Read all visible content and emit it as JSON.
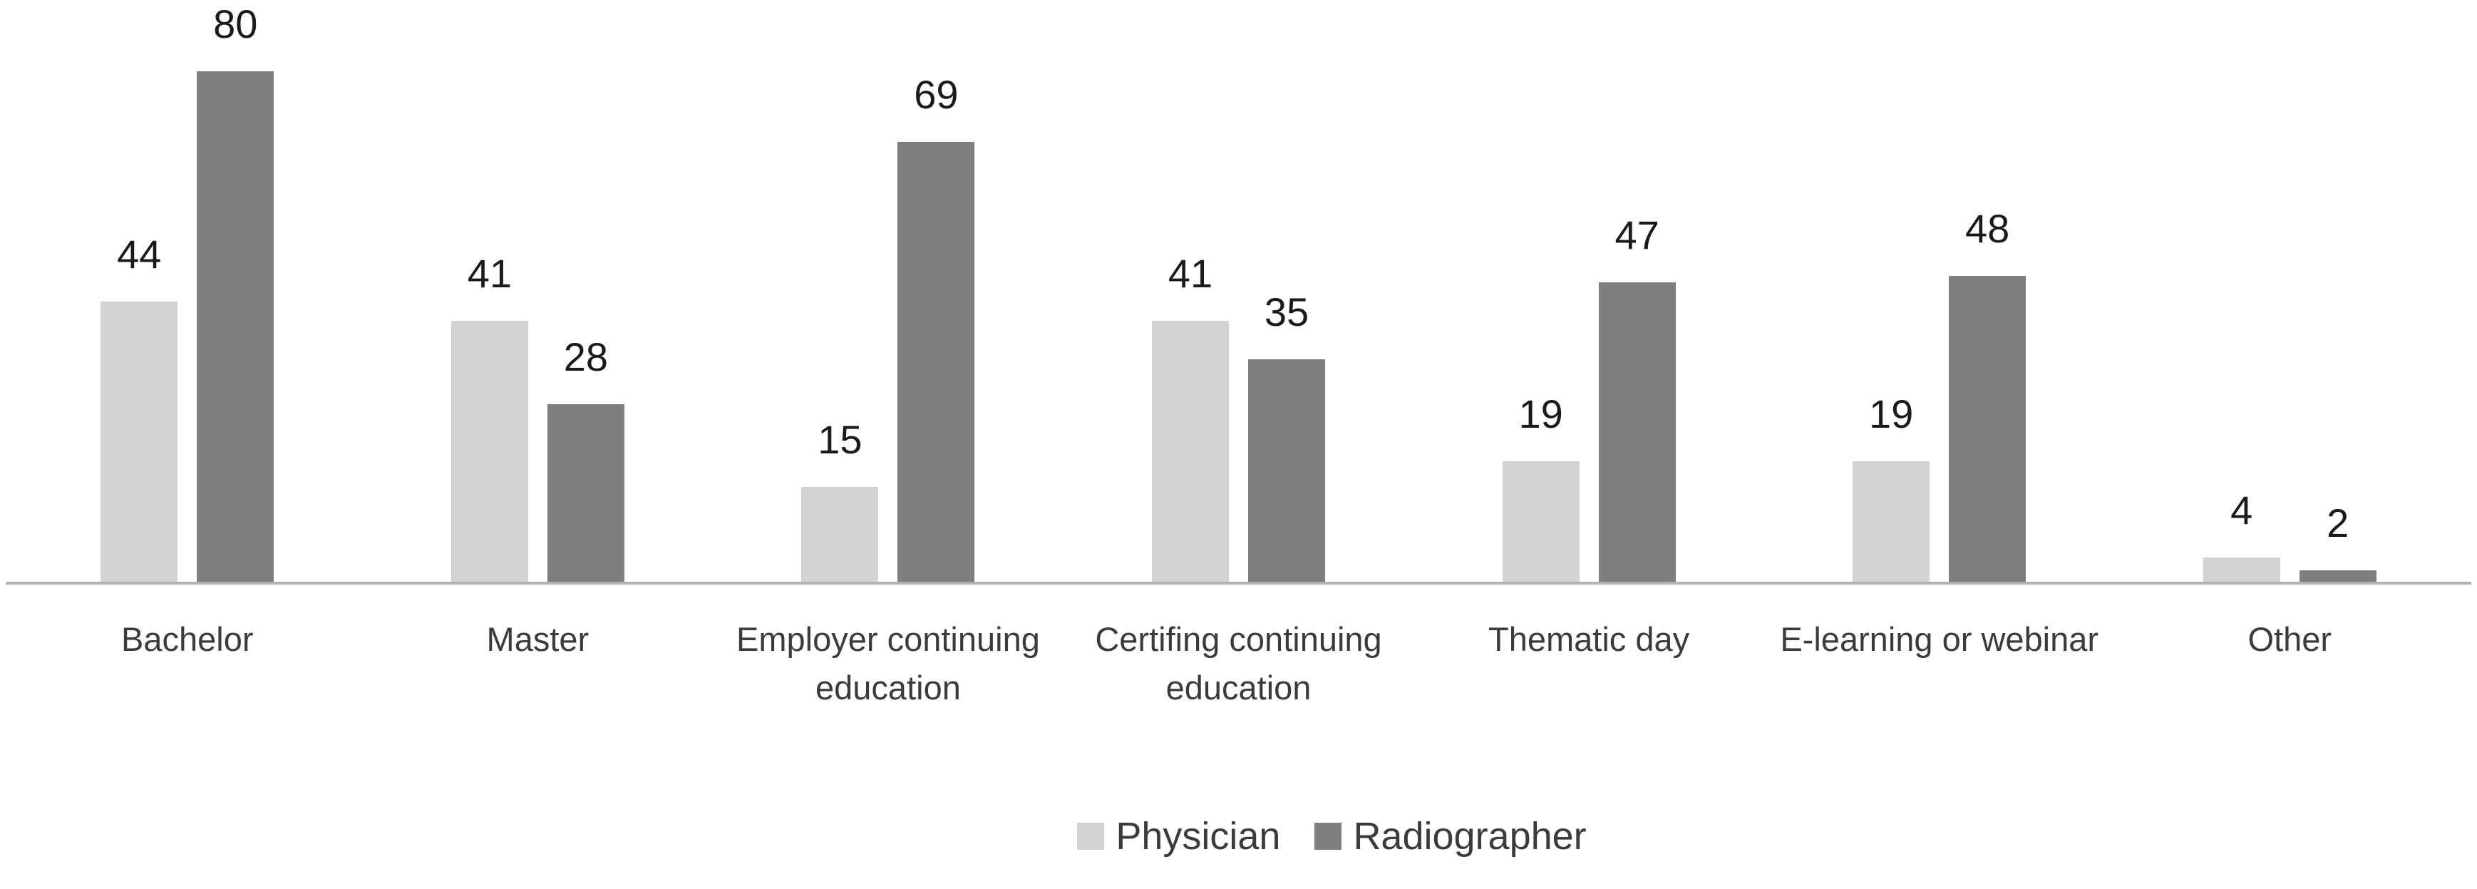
{
  "figure": {
    "background": "#ffffff"
  },
  "chart_data": {
    "type": "bar",
    "title": "",
    "xlabel": "",
    "ylabel": "",
    "categories": [
      "Bachelor",
      "Master",
      "Employer continuing education",
      "Certifing continuing education",
      "Thematic day",
      "E-learning or webinar",
      "Other"
    ],
    "series": [
      {
        "name": "Physician",
        "color": "#d2d2d2",
        "values": [
          44,
          41,
          15,
          41,
          19,
          19,
          4
        ]
      },
      {
        "name": "Radiographer",
        "color": "#7f7f7f",
        "values": [
          80,
          28,
          69,
          35,
          47,
          48,
          2
        ]
      }
    ],
    "value_labels_shown": true,
    "ylim": [
      0,
      91
    ],
    "gridlines": false,
    "y_axis_visible": false,
    "x_axis_line_color": "#b3b3b3",
    "value_label_color": "#1a1a1a",
    "category_label_color": "#3b3b3b",
    "legend": {
      "position": "bottom",
      "entries": [
        "Physician",
        "Radiographer"
      ]
    }
  }
}
